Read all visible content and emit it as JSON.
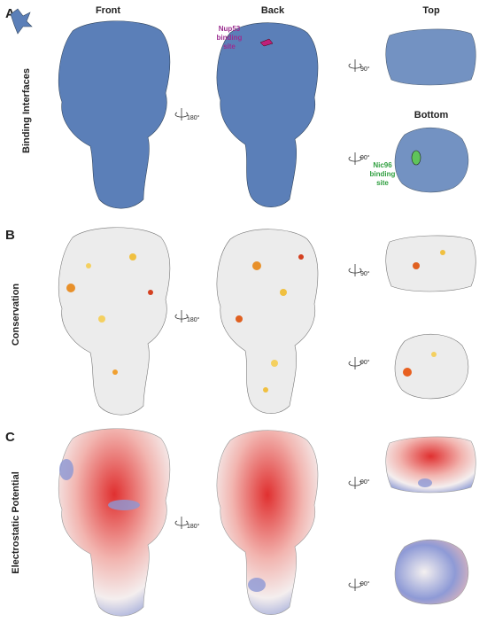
{
  "columns": [
    "Front",
    "Back",
    "Top"
  ],
  "panels": [
    {
      "letter": "A",
      "label": "Binding Interfaces",
      "bottom_heading": "Bottom",
      "nup53_label": [
        "Nup53",
        "binding",
        "site"
      ],
      "nic96_label": [
        "Nic96",
        "binding",
        "site"
      ],
      "rotations": [
        "180°",
        "90°",
        "90°"
      ]
    },
    {
      "letter": "B",
      "label": "Conservation",
      "rotations": [
        "180°",
        "90°",
        "90°"
      ]
    },
    {
      "letter": "C",
      "label": "Electrostatic Potential",
      "rotations": [
        "180°",
        "90°",
        "90°"
      ]
    }
  ]
}
